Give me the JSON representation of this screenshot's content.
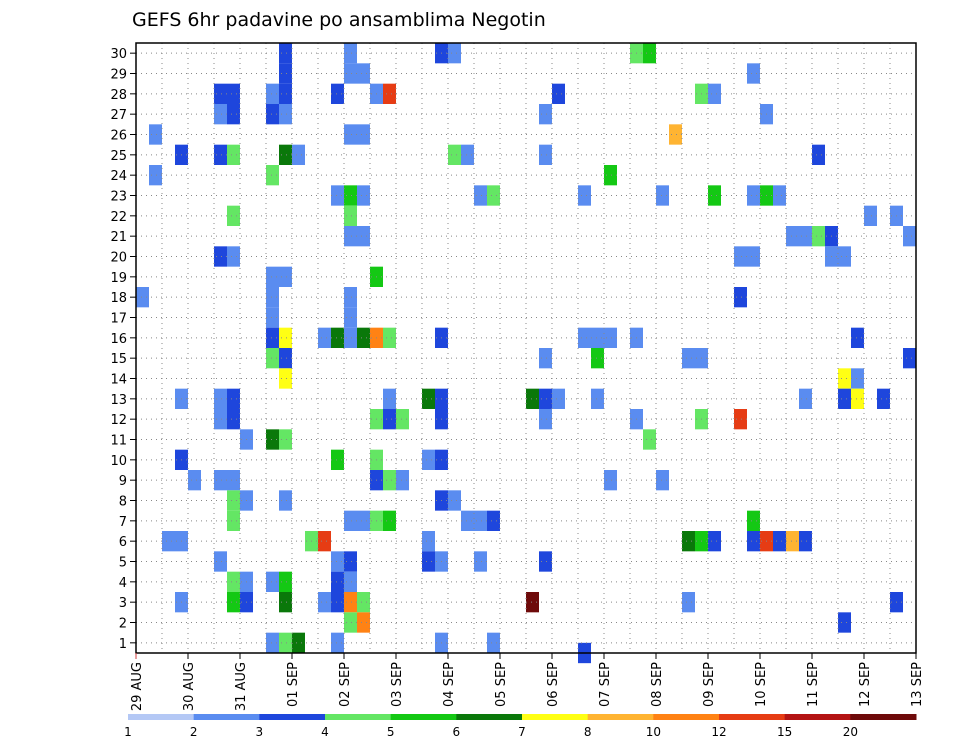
{
  "chart_data": {
    "type": "heatmap",
    "title": "GEFS 6hr padavine po ansamblima Negotin",
    "xlabel": "",
    "ylabel": "",
    "x_ticks": [
      "29 AUG",
      "30 AUG",
      "31 AUG",
      "01 SEP",
      "02 SEP",
      "03 SEP",
      "04 SEP",
      "05 SEP",
      "06 SEP",
      "07 SEP",
      "08 SEP",
      "09 SEP",
      "10 SEP",
      "11 SEP",
      "12 SEP",
      "13 SEP"
    ],
    "y_ticks": [
      1,
      2,
      3,
      4,
      5,
      6,
      7,
      8,
      9,
      10,
      11,
      12,
      13,
      14,
      15,
      16,
      17,
      18,
      19,
      20,
      21,
      22,
      23,
      24,
      25,
      26,
      27,
      28,
      29,
      30
    ],
    "time_step_hours": 6,
    "time_step_unit": "6h step index (0 = 29 AUG 00Z, 4 steps per day)",
    "x_range_steps": [
      0,
      60
    ],
    "y_range": [
      0.5,
      30.5
    ],
    "grid": "dotted",
    "colorbar": {
      "placement": "bottom",
      "labels": [
        "1",
        "2",
        "3",
        "4",
        "5",
        "6",
        "7",
        "8",
        "10",
        "12",
        "15",
        "20"
      ],
      "colors": [
        "#b4c8f5",
        "#5a8cf0",
        "#1e46dc",
        "#64e664",
        "#14c814",
        "#0a780a",
        "#ffff14",
        "#ffb432",
        "#ff8214",
        "#e63c14",
        "#b41414",
        "#6e0a0a"
      ]
    },
    "cells": [
      {
        "m": 30,
        "t": 11,
        "c": 2
      },
      {
        "m": 30,
        "t": 16,
        "c": 1
      },
      {
        "m": 30,
        "t": 23,
        "c": 2
      },
      {
        "m": 30,
        "t": 24,
        "c": 1
      },
      {
        "m": 30,
        "t": 38,
        "c": 3
      },
      {
        "m": 30,
        "t": 39,
        "c": 4
      },
      {
        "m": 29,
        "t": 11,
        "c": 2
      },
      {
        "m": 29,
        "t": 16,
        "c": 1
      },
      {
        "m": 29,
        "t": 17,
        "c": 1
      },
      {
        "m": 29,
        "t": 47,
        "c": 1
      },
      {
        "m": 28,
        "t": 6,
        "c": 2
      },
      {
        "m": 28,
        "t": 7,
        "c": 2
      },
      {
        "m": 28,
        "t": 10,
        "c": 1
      },
      {
        "m": 28,
        "t": 11,
        "c": 2
      },
      {
        "m": 28,
        "t": 15,
        "c": 2
      },
      {
        "m": 28,
        "t": 18,
        "c": 1
      },
      {
        "m": 28,
        "t": 19,
        "c": 9
      },
      {
        "m": 28,
        "t": 32,
        "c": 2
      },
      {
        "m": 28,
        "t": 43,
        "c": 3
      },
      {
        "m": 28,
        "t": 44,
        "c": 1
      },
      {
        "m": 27,
        "t": 6,
        "c": 1
      },
      {
        "m": 27,
        "t": 7,
        "c": 2
      },
      {
        "m": 27,
        "t": 10,
        "c": 2
      },
      {
        "m": 27,
        "t": 11,
        "c": 1
      },
      {
        "m": 27,
        "t": 31,
        "c": 1
      },
      {
        "m": 27,
        "t": 48,
        "c": 1
      },
      {
        "m": 26,
        "t": 1,
        "c": 1
      },
      {
        "m": 26,
        "t": 16,
        "c": 1
      },
      {
        "m": 26,
        "t": 17,
        "c": 1
      },
      {
        "m": 26,
        "t": 41,
        "c": 7
      },
      {
        "m": 25,
        "t": 3,
        "c": 2
      },
      {
        "m": 25,
        "t": 6,
        "c": 2
      },
      {
        "m": 25,
        "t": 7,
        "c": 3
      },
      {
        "m": 25,
        "t": 11,
        "c": 5
      },
      {
        "m": 25,
        "t": 12,
        "c": 1
      },
      {
        "m": 25,
        "t": 24,
        "c": 3
      },
      {
        "m": 25,
        "t": 25,
        "c": 1
      },
      {
        "m": 25,
        "t": 31,
        "c": 1
      },
      {
        "m": 25,
        "t": 52,
        "c": 2
      },
      {
        "m": 24,
        "t": 1,
        "c": 1
      },
      {
        "m": 24,
        "t": 10,
        "c": 3
      },
      {
        "m": 24,
        "t": 36,
        "c": 4
      },
      {
        "m": 23,
        "t": 15,
        "c": 1
      },
      {
        "m": 23,
        "t": 16,
        "c": 4
      },
      {
        "m": 23,
        "t": 17,
        "c": 1
      },
      {
        "m": 23,
        "t": 26,
        "c": 1
      },
      {
        "m": 23,
        "t": 27,
        "c": 3
      },
      {
        "m": 23,
        "t": 34,
        "c": 1
      },
      {
        "m": 23,
        "t": 40,
        "c": 1
      },
      {
        "m": 23,
        "t": 44,
        "c": 4
      },
      {
        "m": 23,
        "t": 47,
        "c": 1
      },
      {
        "m": 23,
        "t": 48,
        "c": 4
      },
      {
        "m": 23,
        "t": 49,
        "c": 1
      },
      {
        "m": 22,
        "t": 7,
        "c": 3
      },
      {
        "m": 22,
        "t": 16,
        "c": 3
      },
      {
        "m": 22,
        "t": 56,
        "c": 1
      },
      {
        "m": 22,
        "t": 58,
        "c": 1
      },
      {
        "m": 21,
        "t": 16,
        "c": 1
      },
      {
        "m": 21,
        "t": 17,
        "c": 1
      },
      {
        "m": 21,
        "t": 50,
        "c": 1
      },
      {
        "m": 21,
        "t": 51,
        "c": 1
      },
      {
        "m": 21,
        "t": 52,
        "c": 3
      },
      {
        "m": 21,
        "t": 53,
        "c": 2
      },
      {
        "m": 21,
        "t": 59,
        "c": 1
      },
      {
        "m": 20,
        "t": 6,
        "c": 2
      },
      {
        "m": 20,
        "t": 7,
        "c": 1
      },
      {
        "m": 20,
        "t": 46,
        "c": 1
      },
      {
        "m": 20,
        "t": 47,
        "c": 1
      },
      {
        "m": 20,
        "t": 53,
        "c": 1
      },
      {
        "m": 20,
        "t": 54,
        "c": 1
      },
      {
        "m": 19,
        "t": 10,
        "c": 1
      },
      {
        "m": 19,
        "t": 11,
        "c": 1
      },
      {
        "m": 19,
        "t": 18,
        "c": 4
      },
      {
        "m": 18,
        "t": 0,
        "c": 1
      },
      {
        "m": 18,
        "t": 10,
        "c": 1
      },
      {
        "m": 18,
        "t": 16,
        "c": 1
      },
      {
        "m": 18,
        "t": 46,
        "c": 2
      },
      {
        "m": 17,
        "t": 10,
        "c": 1
      },
      {
        "m": 17,
        "t": 16,
        "c": 1
      },
      {
        "m": 16,
        "t": 10,
        "c": 2
      },
      {
        "m": 16,
        "t": 11,
        "c": 6
      },
      {
        "m": 16,
        "t": 14,
        "c": 1
      },
      {
        "m": 16,
        "t": 15,
        "c": 5
      },
      {
        "m": 16,
        "t": 16,
        "c": 1
      },
      {
        "m": 16,
        "t": 17,
        "c": 5
      },
      {
        "m": 16,
        "t": 18,
        "c": 8
      },
      {
        "m": 16,
        "t": 19,
        "c": 3
      },
      {
        "m": 16,
        "t": 23,
        "c": 2
      },
      {
        "m": 16,
        "t": 34,
        "c": 1
      },
      {
        "m": 16,
        "t": 35,
        "c": 1
      },
      {
        "m": 16,
        "t": 36,
        "c": 1
      },
      {
        "m": 16,
        "t": 38,
        "c": 1
      },
      {
        "m": 16,
        "t": 55,
        "c": 2
      },
      {
        "m": 15,
        "t": 10,
        "c": 3
      },
      {
        "m": 15,
        "t": 11,
        "c": 2
      },
      {
        "m": 15,
        "t": 31,
        "c": 1
      },
      {
        "m": 15,
        "t": 35,
        "c": 4
      },
      {
        "m": 15,
        "t": 42,
        "c": 1
      },
      {
        "m": 15,
        "t": 43,
        "c": 1
      },
      {
        "m": 15,
        "t": 59,
        "c": 2
      },
      {
        "m": 14,
        "t": 11,
        "c": 6
      },
      {
        "m": 14,
        "t": 54,
        "c": 6
      },
      {
        "m": 14,
        "t": 55,
        "c": 1
      },
      {
        "m": 13,
        "t": 3,
        "c": 1
      },
      {
        "m": 13,
        "t": 6,
        "c": 1
      },
      {
        "m": 13,
        "t": 7,
        "c": 2
      },
      {
        "m": 13,
        "t": 19,
        "c": 1
      },
      {
        "m": 13,
        "t": 22,
        "c": 5
      },
      {
        "m": 13,
        "t": 23,
        "c": 2
      },
      {
        "m": 13,
        "t": 30,
        "c": 5
      },
      {
        "m": 13,
        "t": 31,
        "c": 2
      },
      {
        "m": 13,
        "t": 32,
        "c": 1
      },
      {
        "m": 13,
        "t": 35,
        "c": 1
      },
      {
        "m": 13,
        "t": 51,
        "c": 1
      },
      {
        "m": 13,
        "t": 54,
        "c": 2
      },
      {
        "m": 13,
        "t": 55,
        "c": 6
      },
      {
        "m": 13,
        "t": 57,
        "c": 2
      },
      {
        "m": 12,
        "t": 6,
        "c": 1
      },
      {
        "m": 12,
        "t": 7,
        "c": 2
      },
      {
        "m": 12,
        "t": 18,
        "c": 3
      },
      {
        "m": 12,
        "t": 19,
        "c": 2
      },
      {
        "m": 12,
        "t": 20,
        "c": 3
      },
      {
        "m": 12,
        "t": 23,
        "c": 2
      },
      {
        "m": 12,
        "t": 31,
        "c": 1
      },
      {
        "m": 12,
        "t": 38,
        "c": 1
      },
      {
        "m": 12,
        "t": 43,
        "c": 3
      },
      {
        "m": 12,
        "t": 46,
        "c": 9
      },
      {
        "m": 11,
        "t": 8,
        "c": 1
      },
      {
        "m": 11,
        "t": 10,
        "c": 5
      },
      {
        "m": 11,
        "t": 11,
        "c": 3
      },
      {
        "m": 11,
        "t": 39,
        "c": 3
      },
      {
        "m": 10,
        "t": 3,
        "c": 2
      },
      {
        "m": 10,
        "t": 15,
        "c": 4
      },
      {
        "m": 10,
        "t": 18,
        "c": 3
      },
      {
        "m": 10,
        "t": 22,
        "c": 1
      },
      {
        "m": 10,
        "t": 23,
        "c": 2
      },
      {
        "m": 9,
        "t": 4,
        "c": 1
      },
      {
        "m": 9,
        "t": 6,
        "c": 1
      },
      {
        "m": 9,
        "t": 7,
        "c": 1
      },
      {
        "m": 9,
        "t": 18,
        "c": 2
      },
      {
        "m": 9,
        "t": 19,
        "c": 3
      },
      {
        "m": 9,
        "t": 20,
        "c": 1
      },
      {
        "m": 9,
        "t": 36,
        "c": 1
      },
      {
        "m": 9,
        "t": 40,
        "c": 1
      },
      {
        "m": 8,
        "t": 7,
        "c": 3
      },
      {
        "m": 8,
        "t": 8,
        "c": 1
      },
      {
        "m": 8,
        "t": 11,
        "c": 1
      },
      {
        "m": 8,
        "t": 23,
        "c": 2
      },
      {
        "m": 8,
        "t": 24,
        "c": 1
      },
      {
        "m": 7,
        "t": 7,
        "c": 3
      },
      {
        "m": 7,
        "t": 16,
        "c": 1
      },
      {
        "m": 7,
        "t": 17,
        "c": 1
      },
      {
        "m": 7,
        "t": 18,
        "c": 3
      },
      {
        "m": 7,
        "t": 19,
        "c": 4
      },
      {
        "m": 7,
        "t": 25,
        "c": 1
      },
      {
        "m": 7,
        "t": 26,
        "c": 1
      },
      {
        "m": 7,
        "t": 27,
        "c": 2
      },
      {
        "m": 7,
        "t": 47,
        "c": 4
      },
      {
        "m": 6,
        "t": 2,
        "c": 1
      },
      {
        "m": 6,
        "t": 3,
        "c": 1
      },
      {
        "m": 6,
        "t": 13,
        "c": 3
      },
      {
        "m": 6,
        "t": 14,
        "c": 9
      },
      {
        "m": 6,
        "t": 22,
        "c": 1
      },
      {
        "m": 6,
        "t": 42,
        "c": 5
      },
      {
        "m": 6,
        "t": 43,
        "c": 4
      },
      {
        "m": 6,
        "t": 44,
        "c": 2
      },
      {
        "m": 6,
        "t": 47,
        "c": 2
      },
      {
        "m": 6,
        "t": 48,
        "c": 9
      },
      {
        "m": 6,
        "t": 49,
        "c": 2
      },
      {
        "m": 6,
        "t": 50,
        "c": 7
      },
      {
        "m": 6,
        "t": 51,
        "c": 2
      },
      {
        "m": 5,
        "t": 6,
        "c": 1
      },
      {
        "m": 5,
        "t": 15,
        "c": 1
      },
      {
        "m": 5,
        "t": 16,
        "c": 2
      },
      {
        "m": 5,
        "t": 22,
        "c": 2
      },
      {
        "m": 5,
        "t": 23,
        "c": 1
      },
      {
        "m": 5,
        "t": 26,
        "c": 1
      },
      {
        "m": 5,
        "t": 31,
        "c": 2
      },
      {
        "m": 4,
        "t": 7,
        "c": 3
      },
      {
        "m": 4,
        "t": 8,
        "c": 1
      },
      {
        "m": 4,
        "t": 10,
        "c": 1
      },
      {
        "m": 4,
        "t": 11,
        "c": 4
      },
      {
        "m": 4,
        "t": 15,
        "c": 2
      },
      {
        "m": 4,
        "t": 16,
        "c": 1
      },
      {
        "m": 3,
        "t": 3,
        "c": 1
      },
      {
        "m": 3,
        "t": 7,
        "c": 4
      },
      {
        "m": 3,
        "t": 8,
        "c": 2
      },
      {
        "m": 3,
        "t": 11,
        "c": 5
      },
      {
        "m": 3,
        "t": 14,
        "c": 1
      },
      {
        "m": 3,
        "t": 15,
        "c": 2
      },
      {
        "m": 3,
        "t": 16,
        "c": 8
      },
      {
        "m": 3,
        "t": 17,
        "c": 3
      },
      {
        "m": 3,
        "t": 30,
        "c": 11
      },
      {
        "m": 3,
        "t": 42,
        "c": 1
      },
      {
        "m": 3,
        "t": 58,
        "c": 2
      },
      {
        "m": 2,
        "t": 16,
        "c": 3
      },
      {
        "m": 2,
        "t": 17,
        "c": 8
      },
      {
        "m": 2,
        "t": 54,
        "c": 2
      },
      {
        "m": 1,
        "t": 10,
        "c": 1
      },
      {
        "m": 1,
        "t": 11,
        "c": 3
      },
      {
        "m": 1,
        "t": 12,
        "c": 5
      },
      {
        "m": 1,
        "t": 15,
        "c": 1
      },
      {
        "m": 1,
        "t": 23,
        "c": 1
      },
      {
        "m": 1,
        "t": 27,
        "c": 1
      },
      {
        "m": 0.5,
        "t": 34,
        "c": 2
      }
    ]
  }
}
